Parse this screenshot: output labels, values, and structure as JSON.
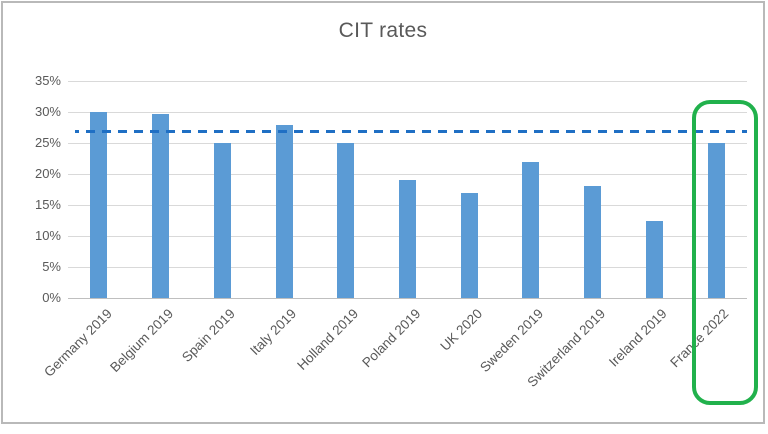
{
  "window": {
    "background_color": "#ffffff",
    "frame_border_color": "#b9b9b9"
  },
  "chart_data": {
    "type": "bar",
    "title": "CIT rates",
    "categories": [
      "Germany 2019",
      "Belgium 2019",
      "Spain 2019",
      "Italy 2019",
      "Holland 2019",
      "Poland 2019",
      "UK 2020",
      "Sweden 2019",
      "Switzerland 2019",
      "Ireland 2019",
      "France 2022"
    ],
    "values": [
      30,
      29.6,
      25,
      27.9,
      25,
      19,
      17,
      21.9,
      18,
      12.5,
      25
    ],
    "xlabel": "",
    "ylabel": "",
    "ylim": [
      0,
      35
    ],
    "ytick_step": 5,
    "yticks": [
      "0%",
      "5%",
      "10%",
      "15%",
      "20%",
      "25%",
      "30%",
      "35%"
    ],
    "grid": "horizontal",
    "legend": "none",
    "bar_color": "#5b9bd5",
    "reference_line": {
      "value": 26.8,
      "style": "dashed",
      "color": "#1f6fc4"
    },
    "highlight": {
      "category": "France 2022",
      "shape": "rounded-rectangle",
      "color": "#21b14c"
    },
    "title_color": "#595959",
    "axis_label_color": "#595959",
    "gridline_color": "#d9d9d9"
  }
}
